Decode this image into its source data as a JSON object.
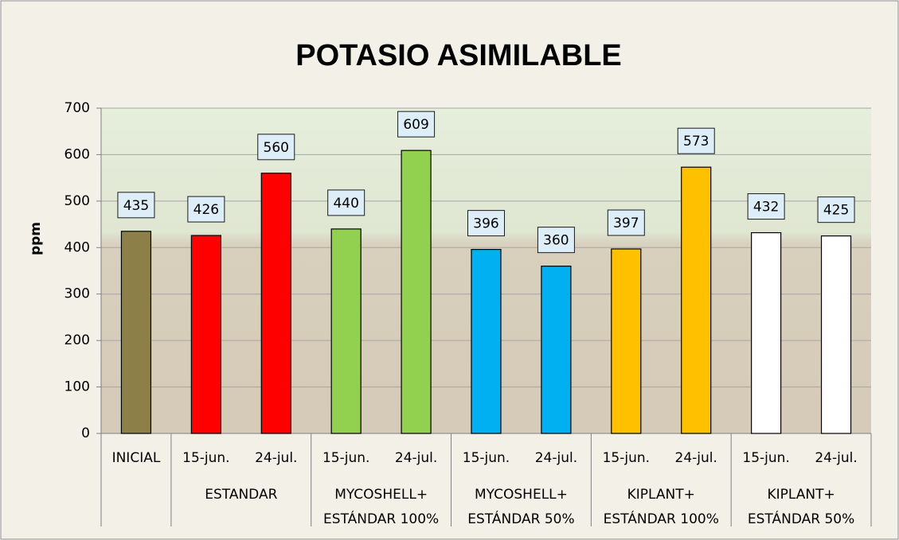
{
  "chart_data": {
    "type": "bar",
    "title": "POTASIO ASIMILABLE",
    "y_label": "ppm",
    "ylim": [
      0,
      700
    ],
    "yticks": [
      0,
      100,
      200,
      300,
      400,
      500,
      600,
      700
    ],
    "grid": true,
    "groups": [
      {
        "categories": [
          "INICIAL"
        ],
        "values": [
          435
        ],
        "color": "#8c8048"
      },
      {
        "label": [
          "ESTANDAR"
        ],
        "categories": [
          "15-jun.",
          "24-jul."
        ],
        "values": [
          426,
          560
        ],
        "color": "#ff0000"
      },
      {
        "label": [
          "MYCOSHELL+",
          "ESTÁNDAR 100%"
        ],
        "categories": [
          "15-jun.",
          "24-jul."
        ],
        "values": [
          440,
          609
        ],
        "color": "#92d050"
      },
      {
        "label": [
          "MYCOSHELL+",
          "ESTÁNDAR 50%"
        ],
        "categories": [
          "15-jun.",
          "24-jul."
        ],
        "values": [
          396,
          360
        ],
        "color": "#00b0f0"
      },
      {
        "label": [
          "KIPLANT+",
          "ESTÁNDAR 100%"
        ],
        "categories": [
          "15-jun.",
          "24-jul."
        ],
        "values": [
          397,
          573
        ],
        "color": "#ffc000"
      },
      {
        "label": [
          "KIPLANT+",
          "ESTÁNDAR 50%"
        ],
        "categories": [
          "15-jun.",
          "24-jul."
        ],
        "values": [
          432,
          425
        ],
        "color": "#ffffff"
      }
    ]
  }
}
